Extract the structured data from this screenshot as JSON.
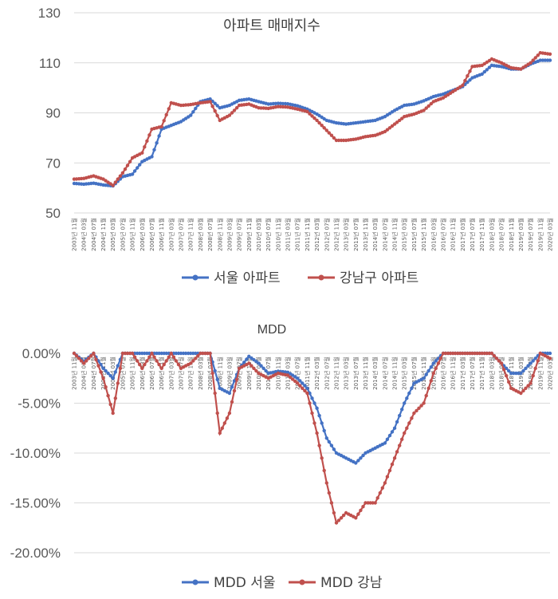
{
  "colors": {
    "blue": "#4472C4",
    "red": "#C0504D"
  },
  "chart_data": [
    {
      "type": "line",
      "title": "아파트 매매지수",
      "ylim": [
        50,
        130
      ],
      "yticks": [
        "50",
        "70",
        "90",
        "110",
        "130"
      ],
      "ytick_values": [
        50,
        70,
        90,
        110,
        130
      ],
      "x": [
        "2003년 11월",
        "2004년 03월",
        "2004년 07월",
        "2004년 11월",
        "2005년 03월",
        "2005년 07월",
        "2005년 11월",
        "2006년 03월",
        "2006년 07월",
        "2006년 11월",
        "2007년 03월",
        "2007년 07월",
        "2007년 11월",
        "2008년 03월",
        "2008년 07월",
        "2008년 11월",
        "2009년 03월",
        "2009년 07월",
        "2009년 11월",
        "2010년 03월",
        "2010년 07월",
        "2010년 11월",
        "2011년 03월",
        "2011년 07월",
        "2011년 11월",
        "2012년 03월",
        "2012년 07월",
        "2012년 11월",
        "2013년 03월",
        "2013년 07월",
        "2013년 11월",
        "2014년 03월",
        "2014년 07월",
        "2014년 11월",
        "2015년 03월",
        "2015년 07월",
        "2015년 11월",
        "2016년 03월",
        "2016년 07월",
        "2016년 11월",
        "2017년 03월",
        "2017년 07월",
        "2017년 11월",
        "2018년 03월",
        "2018년 07월",
        "2018년 11월",
        "2019년 03월",
        "2019년 07월",
        "2019년 11월",
        "2020년 03월"
      ],
      "series": [
        {
          "name": "서울 아파트",
          "color": "#4472C4",
          "values": [
            61.8,
            61.5,
            61.9,
            61.2,
            60.8,
            64.5,
            65.5,
            70.5,
            72.5,
            83.5,
            85.0,
            86.5,
            89.0,
            94.5,
            95.5,
            92.0,
            93.0,
            95.0,
            95.5,
            94.5,
            93.5,
            93.8,
            93.6,
            92.8,
            91.5,
            89.5,
            87.0,
            86.0,
            85.5,
            86.0,
            86.5,
            87.0,
            88.5,
            91.0,
            93.0,
            93.5,
            94.8,
            96.5,
            97.5,
            99.0,
            100.5,
            104.0,
            105.5,
            109.0,
            108.5,
            107.5,
            107.5,
            109.5,
            111.0,
            111.0
          ]
        },
        {
          "name": "강남구 아파트",
          "color": "#C0504D",
          "values": [
            63.5,
            63.8,
            64.8,
            63.5,
            61.0,
            66.0,
            72.0,
            74.0,
            83.5,
            84.5,
            94.0,
            93.0,
            93.3,
            94.0,
            94.5,
            87.0,
            89.0,
            93.0,
            93.5,
            92.0,
            91.8,
            92.5,
            92.3,
            91.5,
            90.5,
            87.0,
            83.0,
            79.0,
            79.0,
            79.5,
            80.5,
            81.0,
            82.5,
            85.5,
            88.5,
            89.5,
            91.0,
            94.5,
            96.0,
            98.5,
            101.0,
            108.5,
            109.0,
            111.5,
            110.0,
            108.0,
            107.5,
            110.0,
            114.0,
            113.5
          ]
        }
      ],
      "legend": "bottom"
    },
    {
      "type": "line",
      "title": "MDD",
      "ylim": [
        -20,
        0
      ],
      "yticks": [
        "0.00%",
        "-5.00%",
        "-10.00%",
        "-15.00%",
        "-20.00%"
      ],
      "ytick_values": [
        0,
        -5,
        -10,
        -15,
        -20
      ],
      "x": [
        "2003년 11월",
        "2004년 03월",
        "2004년 07월",
        "2004년 11월",
        "2005년 03월",
        "2005년 07월",
        "2005년 11월",
        "2006년 03월",
        "2006년 07월",
        "2006년 11월",
        "2007년 03월",
        "2007년 07월",
        "2007년 11월",
        "2008년 03월",
        "2008년 07월",
        "2008년 11월",
        "2009년 03월",
        "2009년 07월",
        "2009년 11월",
        "2010년 03월",
        "2010년 07월",
        "2010년 11월",
        "2011년 03월",
        "2011년 07월",
        "2011년 11월",
        "2012년 03월",
        "2012년 07월",
        "2012년 11월",
        "2013년 03월",
        "2013년 07월",
        "2013년 11월",
        "2014년 03월",
        "2014년 07월",
        "2014년 11월",
        "2015년 03월",
        "2015년 07월",
        "2015년 11월",
        "2016년 03월",
        "2016년 07월",
        "2016년 11월",
        "2017년 03월",
        "2017년 07월",
        "2017년 11월",
        "2018년 03월",
        "2018년 07월",
        "2018년 11월",
        "2019년 03월",
        "2019년 07월",
        "2019년 11월",
        "2020년 03월"
      ],
      "series": [
        {
          "name": "MDD 서울",
          "color": "#4472C4",
          "values": [
            0,
            -0.8,
            0,
            -1.5,
            -2.5,
            0,
            0,
            0,
            0,
            0,
            0,
            0,
            0,
            0,
            0,
            -3.5,
            -4.0,
            -1.5,
            -0.3,
            -1.0,
            -2.0,
            -1.8,
            -1.9,
            -2.5,
            -3.5,
            -5.5,
            -8.5,
            -10.0,
            -10.5,
            -11.0,
            -10.0,
            -9.5,
            -9.0,
            -7.5,
            -5.0,
            -3.0,
            -2.5,
            -1.0,
            0,
            0,
            0,
            0,
            0,
            0,
            -1.0,
            -2.0,
            -2.0,
            -1.0,
            0,
            0
          ]
        },
        {
          "name": "MDD 강남",
          "color": "#C0504D",
          "values": [
            0,
            -1.0,
            0,
            -2.5,
            -6.0,
            0,
            0,
            -1.5,
            0,
            -1.5,
            0,
            -1.5,
            -1.0,
            0,
            0,
            -8.0,
            -6.0,
            -1.5,
            -1.0,
            -2.0,
            -2.5,
            -2.0,
            -2.2,
            -3.0,
            -4.0,
            -8.0,
            -13.0,
            -17.0,
            -16.0,
            -16.5,
            -15.0,
            -15.0,
            -13.0,
            -10.5,
            -8.0,
            -6.0,
            -5.0,
            -2.0,
            0,
            0,
            0,
            0,
            0,
            0,
            -1.0,
            -3.5,
            -4.0,
            -3.0,
            0,
            -0.5
          ]
        }
      ],
      "legend": "bottom"
    }
  ]
}
